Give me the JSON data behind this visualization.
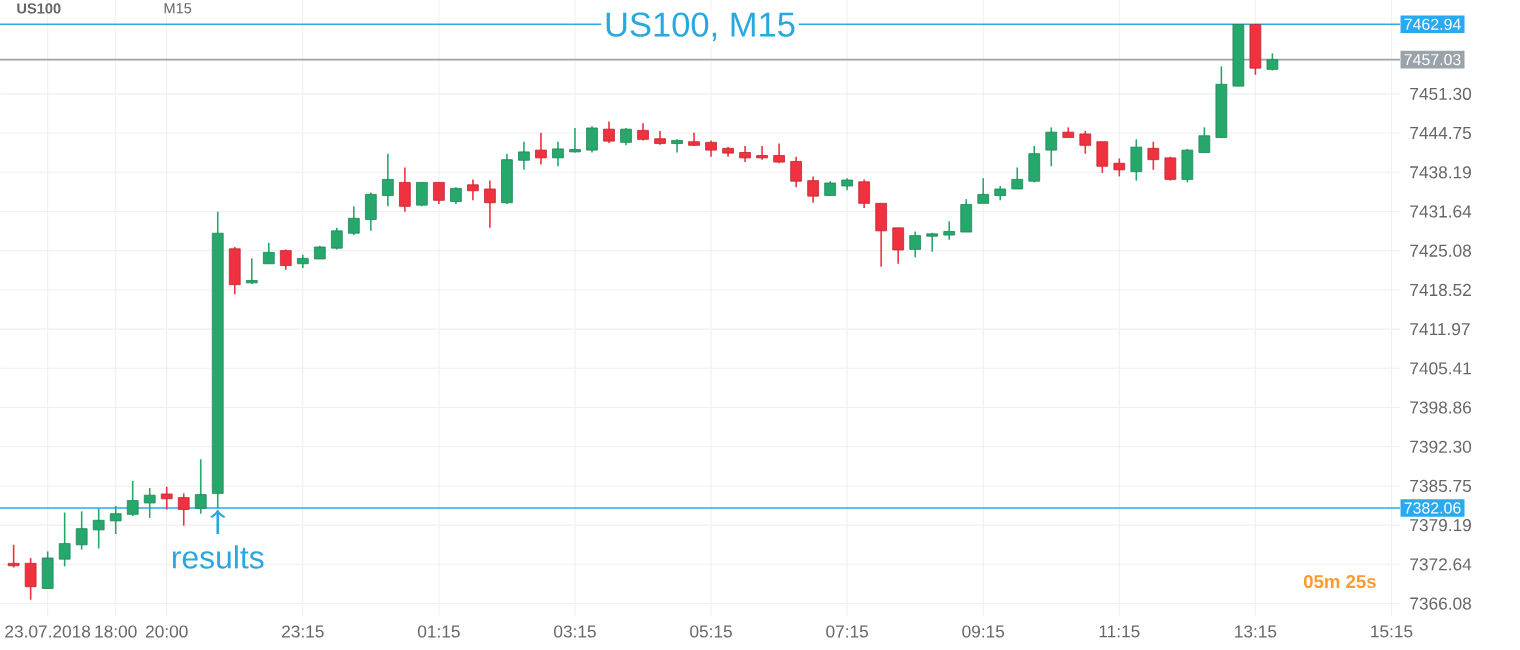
{
  "chart_data": {
    "type": "candlestick",
    "title": "US100, M15",
    "categories": [
      null,
      null,
      "23.07.2018",
      null,
      null,
      null,
      "18:00",
      null,
      null,
      "20:00",
      null,
      null,
      null,
      null,
      null,
      null,
      null,
      "23:15",
      null,
      null,
      null,
      null,
      null,
      null,
      null,
      "01:15",
      null,
      null,
      null,
      null,
      null,
      null,
      null,
      "03:15",
      null,
      null,
      null,
      null,
      null,
      null,
      null,
      "05:15",
      null,
      null,
      null,
      null,
      null,
      null,
      null,
      "07:15",
      null,
      null,
      null,
      null,
      null,
      null,
      null,
      "09:15",
      null,
      null,
      null,
      null,
      null,
      null,
      null,
      "11:15",
      null,
      null,
      null,
      null,
      null,
      null,
      null,
      "13:15",
      null,
      null,
      null,
      null,
      null,
      null,
      null,
      "15:15"
    ],
    "ohlc": [
      [
        7372.8,
        7375.9,
        7372.1,
        7372.4
      ],
      [
        7372.8,
        7373.7,
        7366.7,
        7368.9
      ],
      [
        7368.6,
        7374.8,
        7368.6,
        7373.7
      ],
      [
        7373.5,
        7381.3,
        7372.3,
        7376.1
      ],
      [
        7375.9,
        7381.5,
        7375.1,
        7378.6
      ],
      [
        7378.4,
        7382.0,
        7375.3,
        7380.0
      ],
      [
        7379.9,
        7382.4,
        7377.7,
        7381.1
      ],
      [
        7381.0,
        7386.6,
        7380.7,
        7383.3
      ],
      [
        7382.9,
        7385.4,
        7380.4,
        7384.2
      ],
      [
        7384.4,
        7385.6,
        7381.8,
        7383.6
      ],
      [
        7383.8,
        7384.5,
        7379.1,
        7381.8
      ],
      [
        7382.0,
        7390.2,
        7381.1,
        7384.3
      ],
      [
        7384.5,
        7431.6,
        7382.0,
        7428.0
      ],
      [
        7425.4,
        7425.7,
        7417.8,
        7419.4
      ],
      [
        7419.7,
        7423.8,
        7419.5,
        7420.1
      ],
      [
        7422.9,
        7426.4,
        7422.9,
        7424.8
      ],
      [
        7425.1,
        7425.3,
        7421.9,
        7422.6
      ],
      [
        7422.9,
        7424.4,
        7422.2,
        7423.8
      ],
      [
        7423.7,
        7425.9,
        7423.7,
        7425.7
      ],
      [
        7425.5,
        7428.9,
        7425.3,
        7428.4
      ],
      [
        7428.0,
        7432.5,
        7427.7,
        7430.5
      ],
      [
        7430.3,
        7434.8,
        7428.4,
        7434.5
      ],
      [
        7434.3,
        7441.3,
        7432.5,
        7437.0
      ],
      [
        7436.5,
        7439.0,
        7431.6,
        7432.5
      ],
      [
        7432.7,
        7436.5,
        7432.5,
        7436.5
      ],
      [
        7436.5,
        7436.5,
        7432.9,
        7433.5
      ],
      [
        7433.3,
        7435.7,
        7432.9,
        7435.5
      ],
      [
        7436.1,
        7437.0,
        7433.5,
        7435.1
      ],
      [
        7435.4,
        7436.8,
        7428.9,
        7433.1
      ],
      [
        7433.1,
        7441.3,
        7432.9,
        7440.3
      ],
      [
        7440.2,
        7443.3,
        7438.6,
        7441.6
      ],
      [
        7441.9,
        7444.8,
        7439.5,
        7440.6
      ],
      [
        7440.6,
        7443.3,
        7439.2,
        7442.1
      ],
      [
        7441.6,
        7445.6,
        7441.5,
        7442.0
      ],
      [
        7441.9,
        7445.9,
        7441.5,
        7445.6
      ],
      [
        7445.4,
        7446.7,
        7443.1,
        7443.4
      ],
      [
        7443.2,
        7445.6,
        7442.7,
        7445.4
      ],
      [
        7445.2,
        7446.4,
        7443.5,
        7443.7
      ],
      [
        7443.8,
        7445.1,
        7442.8,
        7443.0
      ],
      [
        7443.0,
        7443.7,
        7441.5,
        7443.5
      ],
      [
        7443.3,
        7444.8,
        7442.6,
        7442.7
      ],
      [
        7443.2,
        7443.5,
        7440.8,
        7441.9
      ],
      [
        7442.2,
        7442.4,
        7440.8,
        7441.4
      ],
      [
        7441.5,
        7442.6,
        7439.9,
        7440.6
      ],
      [
        7441.0,
        7442.6,
        7440.3,
        7440.6
      ],
      [
        7441.0,
        7443.0,
        7439.7,
        7439.9
      ],
      [
        7440.0,
        7440.8,
        7435.7,
        7436.7
      ],
      [
        7436.8,
        7437.5,
        7433.1,
        7434.2
      ],
      [
        7434.3,
        7436.7,
        7434.3,
        7436.4
      ],
      [
        7435.9,
        7437.2,
        7435.2,
        7436.9
      ],
      [
        7436.6,
        7437.0,
        7432.2,
        7433.0
      ],
      [
        7433.0,
        7433.0,
        7422.4,
        7428.4
      ],
      [
        7428.9,
        7428.9,
        7422.9,
        7425.2
      ],
      [
        7425.3,
        7428.3,
        7424.0,
        7427.6
      ],
      [
        7427.5,
        7428.1,
        7424.9,
        7427.9
      ],
      [
        7427.7,
        7430.0,
        7426.9,
        7428.3
      ],
      [
        7428.2,
        7433.7,
        7428.2,
        7432.8
      ],
      [
        7433.0,
        7437.2,
        7433.0,
        7434.5
      ],
      [
        7434.3,
        7435.9,
        7433.5,
        7435.4
      ],
      [
        7435.4,
        7439.0,
        7435.4,
        7437.0
      ],
      [
        7436.7,
        7442.6,
        7436.5,
        7441.3
      ],
      [
        7441.9,
        7445.7,
        7439.2,
        7444.9
      ],
      [
        7444.9,
        7445.7,
        7444.0,
        7444.0
      ],
      [
        7444.6,
        7445.1,
        7441.3,
        7442.7
      ],
      [
        7443.3,
        7443.3,
        7438.1,
        7439.2
      ],
      [
        7439.7,
        7440.5,
        7437.5,
        7438.6
      ],
      [
        7438.3,
        7443.7,
        7436.8,
        7442.4
      ],
      [
        7442.2,
        7443.3,
        7438.6,
        7440.3
      ],
      [
        7440.6,
        7440.8,
        7436.8,
        7437.0
      ],
      [
        7437.0,
        7442.1,
        7436.5,
        7441.9
      ],
      [
        7441.5,
        7445.7,
        7441.5,
        7444.3
      ],
      [
        7444.0,
        7455.9,
        7444.0,
        7452.9
      ],
      [
        7452.6,
        7462.94,
        7452.6,
        7462.9
      ],
      [
        7462.9,
        7462.94,
        7454.5,
        7455.6
      ],
      [
        7455.4,
        7458.1,
        7455.2,
        7457.03
      ],
      null,
      null,
      null,
      null,
      null,
      null,
      null
    ],
    "colors": [
      "#f0313f",
      "#f0313f",
      "#26a86c",
      "#26a86c",
      "#26a86c",
      "#26a86c",
      "#26a86c",
      "#26a86c",
      "#26a86c",
      "#f0313f",
      "#f0313f",
      "#26a86c",
      "#26a86c",
      "#f0313f",
      "#26a86c",
      "#26a86c",
      "#f0313f",
      "#26a86c",
      "#26a86c",
      "#26a86c",
      "#26a86c",
      "#26a86c",
      "#26a86c",
      "#f0313f",
      "#26a86c",
      "#f0313f",
      "#26a86c",
      "#f0313f",
      "#f0313f",
      "#26a86c",
      "#26a86c",
      "#f0313f",
      "#26a86c",
      "#26a86c",
      "#26a86c",
      "#f0313f",
      "#26a86c",
      "#f0313f",
      "#f0313f",
      "#26a86c",
      "#f0313f",
      "#f0313f",
      "#f0313f",
      "#f0313f",
      "#f0313f",
      "#f0313f",
      "#f0313f",
      "#f0313f",
      "#26a86c",
      "#26a86c",
      "#f0313f",
      "#f0313f",
      "#f0313f",
      "#26a86c",
      "#26a86c",
      "#26a86c",
      "#26a86c",
      "#26a86c",
      "#26a86c",
      "#26a86c",
      "#26a86c",
      "#26a86c",
      "#f0313f",
      "#f0313f",
      "#f0313f",
      "#f0313f",
      "#26a86c",
      "#f0313f",
      "#f0313f",
      "#26a86c",
      "#26a86c",
      "#26a86c",
      "#26a86c",
      "#f0313f",
      "#26a86c",
      null,
      null,
      null,
      null,
      null,
      null,
      null
    ],
    "ylim": [
      7364,
      7467
    ],
    "yticks": [
      {
        "value": 7366.08,
        "label": "7366.08"
      },
      {
        "value": 7372.64,
        "label": "7372.64"
      },
      {
        "value": 7379.19,
        "label": "7379.19"
      },
      {
        "value": 7385.75,
        "label": "7385.75"
      },
      {
        "value": 7392.3,
        "label": "7392.30"
      },
      {
        "value": 7398.86,
        "label": "7398.86"
      },
      {
        "value": 7405.41,
        "label": "7405.41"
      },
      {
        "value": 7411.97,
        "label": "7411.97"
      },
      {
        "value": 7418.52,
        "label": "7418.52"
      },
      {
        "value": 7425.08,
        "label": "7425.08"
      },
      {
        "value": 7431.64,
        "label": "7431.64"
      },
      {
        "value": 7438.19,
        "label": "7438.19"
      },
      {
        "value": 7444.75,
        "label": "7444.75"
      },
      {
        "value": 7451.3,
        "label": "7451.30"
      }
    ],
    "ref_lines": [
      {
        "axis": "y",
        "value": 7457.03,
        "label": "7457.03",
        "color": "#9aa3aa"
      },
      {
        "axis": "y",
        "value": 7462.94,
        "label": "7462.94",
        "color": "#29aaf0"
      },
      {
        "axis": "y",
        "value": 7382.06,
        "label": "7382.06",
        "color": "#29aaf0"
      }
    ],
    "annotations": [
      "US100",
      "M15",
      "results",
      "05m 25s"
    ],
    "grid": true
  }
}
